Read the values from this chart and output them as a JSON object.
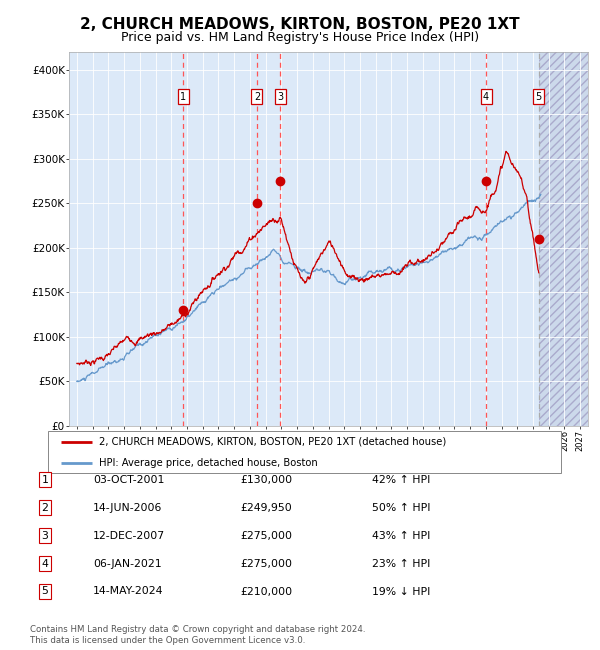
{
  "title": "2, CHURCH MEADOWS, KIRTON, BOSTON, PE20 1XT",
  "subtitle": "Price paid vs. HM Land Registry's House Price Index (HPI)",
  "legend_label_red": "2, CHURCH MEADOWS, KIRTON, BOSTON, PE20 1XT (detached house)",
  "legend_label_blue": "HPI: Average price, detached house, Boston",
  "footer1": "Contains HM Land Registry data © Crown copyright and database right 2024.",
  "footer2": "This data is licensed under the Open Government Licence v3.0.",
  "transactions": [
    {
      "num": 1,
      "date": "03-OCT-2001",
      "price": 130000,
      "pct": "42%",
      "dir": "↑"
    },
    {
      "num": 2,
      "date": "14-JUN-2006",
      "price": 249950,
      "pct": "50%",
      "dir": "↑"
    },
    {
      "num": 3,
      "date": "12-DEC-2007",
      "price": 275000,
      "pct": "43%",
      "dir": "↑"
    },
    {
      "num": 4,
      "date": "06-JAN-2021",
      "price": 275000,
      "pct": "23%",
      "dir": "↑"
    },
    {
      "num": 5,
      "date": "14-MAY-2024",
      "price": 210000,
      "pct": "19%",
      "dir": "↓"
    }
  ],
  "transaction_dates_decimal": [
    2001.75,
    2006.45,
    2007.94,
    2021.02,
    2024.37
  ],
  "transaction_prices": [
    130000,
    249950,
    275000,
    275000,
    210000
  ],
  "ylim": [
    0,
    420000
  ],
  "xlim_start": 1994.5,
  "xlim_end": 2027.5,
  "bg_color": "#dce9f8",
  "hatch_bg_color": "#ccd9eb",
  "grid_color": "#ffffff",
  "red_line_color": "#cc0000",
  "blue_line_color": "#6699cc",
  "dot_color": "#cc0000",
  "vline_color": "#ff5555",
  "vline5_color": "#aaaaaa",
  "box_edge_color": "#cc0000",
  "future_start": 2024.37,
  "title_fontsize": 11,
  "subtitle_fontsize": 9
}
